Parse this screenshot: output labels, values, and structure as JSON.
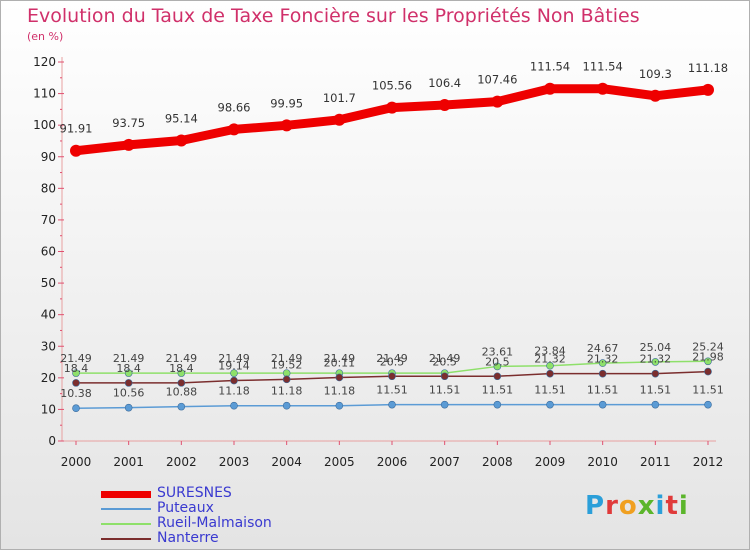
{
  "title": "Evolution du Taux de Taxe Foncière sur les Propriétés Non Bâties",
  "unit_label": "(en %)",
  "brand": {
    "letters": [
      "P",
      "r",
      "o",
      "x",
      "i",
      "t",
      "i"
    ],
    "colors": [
      "#2b9fd9",
      "#e03a3a",
      "#f0a020",
      "#5bb52b",
      "#2b9fd9",
      "#e03a3a",
      "#5bb52b"
    ]
  },
  "chart_data": {
    "type": "line",
    "x": [
      "2000",
      "2001",
      "2002",
      "2003",
      "2004",
      "2005",
      "2006",
      "2007",
      "2008",
      "2009",
      "2010",
      "2011",
      "2012"
    ],
    "ylim": [
      0,
      120
    ],
    "yticks": [
      0,
      10,
      20,
      30,
      40,
      50,
      60,
      70,
      80,
      90,
      100,
      110,
      120
    ],
    "grid": false,
    "legend_position": "bottom-left",
    "series": [
      {
        "name": "SURESNES",
        "color": "#ee0000",
        "values": [
          91.91,
          93.75,
          95.14,
          98.66,
          99.95,
          101.7,
          105.56,
          106.4,
          107.46,
          111.54,
          111.54,
          109.3,
          111.18
        ],
        "labels": [
          "91.91",
          "93.75",
          "95.14",
          "98.66",
          "99.95",
          "101.7",
          "105.56",
          "106.4",
          "107.46",
          "111.54",
          "111.54",
          "109.3",
          "111.18"
        ]
      },
      {
        "name": "Puteaux",
        "color": "#5b9bd5",
        "values": [
          10.38,
          10.56,
          10.88,
          11.18,
          11.18,
          11.18,
          11.51,
          11.51,
          11.51,
          11.51,
          11.51,
          11.51,
          11.51
        ],
        "labels": [
          "10.38",
          "10.56",
          "10.88",
          "11.18",
          "11.18",
          "11.18",
          "11.51",
          "11.51",
          "11.51",
          "11.51",
          "11.51",
          "11.51",
          "11.51"
        ]
      },
      {
        "name": "Rueil-Malmaison",
        "color": "#8ee06a",
        "values": [
          21.49,
          21.49,
          21.49,
          21.49,
          21.49,
          21.49,
          21.49,
          21.49,
          23.61,
          23.84,
          24.67,
          25.04,
          25.24
        ],
        "labels": [
          "21.49",
          "21.49",
          "21.49",
          "21.49",
          "21.49",
          "21.49",
          "21.49",
          "21.49",
          "23.61",
          "23.84",
          "24.67",
          "25.04",
          "25.24"
        ]
      },
      {
        "name": "Nanterre",
        "color": "#7b2e2e",
        "values": [
          18.4,
          18.4,
          18.4,
          19.14,
          19.52,
          20.11,
          20.5,
          20.5,
          20.5,
          21.32,
          21.32,
          21.32,
          21.98
        ],
        "labels": [
          "18.4",
          "18.4",
          "18.4",
          "19.14",
          "19.52",
          "20.11",
          "20.5",
          "20.5",
          "20.5",
          "21.32",
          "21.32",
          "21.32",
          "21.98"
        ]
      }
    ]
  }
}
